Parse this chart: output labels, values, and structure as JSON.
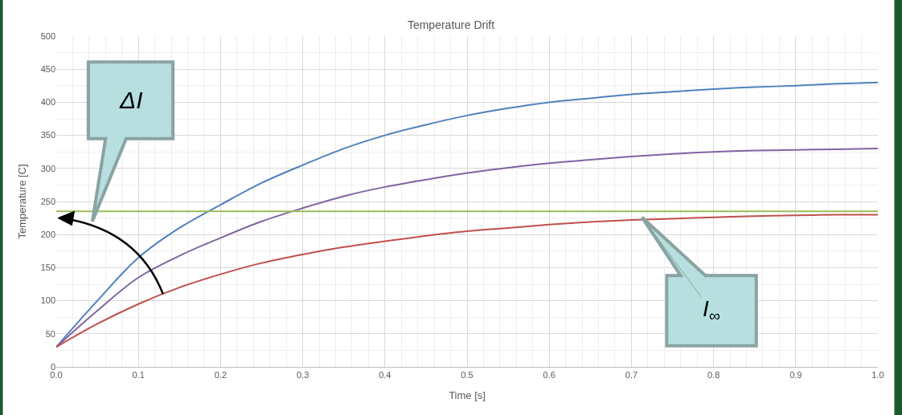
{
  "chart_data": {
    "type": "line",
    "title": "Temperature Drift",
    "xlabel": "Time [s]",
    "ylabel": "Temperature [C]",
    "x": [
      0,
      0.05,
      0.1,
      0.15,
      0.2,
      0.25,
      0.3,
      0.35,
      0.4,
      0.45,
      0.5,
      0.55,
      0.6,
      0.65,
      0.7,
      0.75,
      0.8,
      0.85,
      0.9,
      0.95,
      1.0
    ],
    "series": [
      {
        "color": "#4f81bd",
        "values": [
          30,
          100,
          165,
          210,
          245,
          278,
          305,
          330,
          350,
          366,
          380,
          391,
          400,
          406,
          412,
          416,
          420,
          423,
          425,
          428,
          430
        ]
      },
      {
        "color": "#8064a2",
        "values": [
          30,
          85,
          135,
          168,
          195,
          220,
          240,
          258,
          272,
          283,
          293,
          301,
          308,
          313,
          318,
          322,
          325,
          327,
          328,
          329,
          330
        ]
      },
      {
        "color": "#c0504d",
        "values": [
          30,
          65,
          95,
          120,
          140,
          157,
          170,
          181,
          190,
          198,
          205,
          210,
          215,
          219,
          222,
          224,
          226,
          228,
          229,
          230,
          230
        ]
      }
    ],
    "ref_lines": [
      {
        "axis": "y",
        "value": 235,
        "color": "#9bbb59"
      }
    ],
    "annotations": [
      "ΔI",
      {
        "text": "I$_{∞}$",
        "x": 0.713,
        "y": 226
      }
    ],
    "xlim": [
      0,
      1.0
    ],
    "xticks": [
      {
        "value": 0,
        "label": "0.0"
      },
      0.1,
      0.2,
      0.3,
      0.4,
      0.5,
      0.6,
      0.7,
      0.8,
      0.9,
      {
        "value": 1.0,
        "label": "1.0"
      }
    ],
    "ylim": [
      0,
      500
    ],
    "yticks": [
      0,
      50,
      100,
      150,
      200,
      250,
      300,
      350,
      400,
      450,
      500
    ],
    "grid": true,
    "line_style": "solid",
    "marker": "none"
  }
}
